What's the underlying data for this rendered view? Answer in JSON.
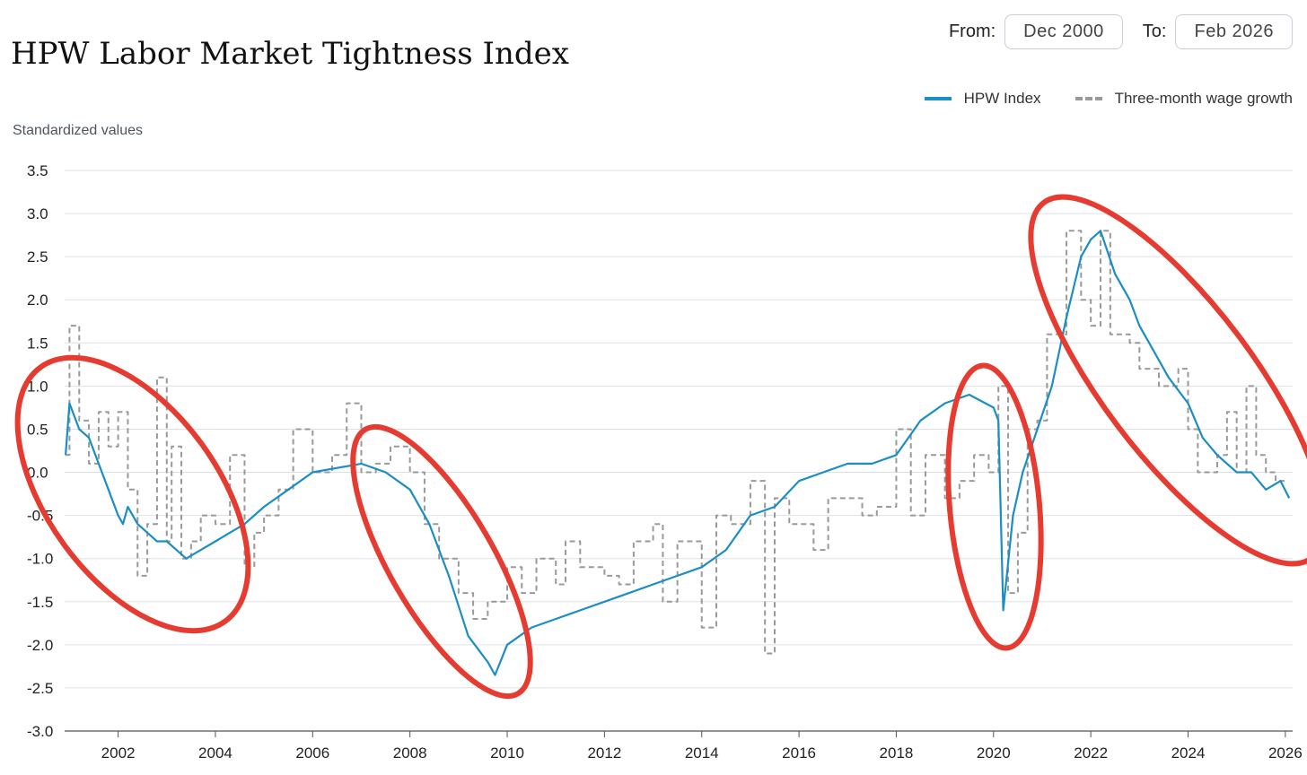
{
  "title": "HPW Labor Market Tightness Index",
  "controls": {
    "from_label": "From:",
    "from_value": "Dec 2000",
    "to_label": "To:",
    "to_value": "Feb 2026"
  },
  "legend": [
    {
      "label": "HPW Index",
      "color": "#1b8ec3",
      "style": "solid"
    },
    {
      "label": "Three-month wage growth",
      "color": "#9a9a9a",
      "style": "dashed"
    }
  ],
  "annotation_color": "#e53b30",
  "chart_data": {
    "type": "line",
    "title": "HPW Labor Market Tightness Index",
    "ylabel": "Standardized values",
    "xlabel": "",
    "ylim": [
      -3.0,
      3.5
    ],
    "xlim": [
      2000.9,
      2026.15
    ],
    "yticks": [
      "3.5",
      "3.0",
      "2.5",
      "2.0",
      "1.5",
      "1.0",
      "0.5",
      "0.0",
      "-0.5",
      "-1.0",
      "-1.5",
      "-2.0",
      "-2.5",
      "-3.0"
    ],
    "ytick_values": [
      3.5,
      3.0,
      2.5,
      2.0,
      1.5,
      1.0,
      0.5,
      0.0,
      -0.5,
      -1.0,
      -1.5,
      -2.0,
      -2.5,
      -3.0
    ],
    "xticks": [
      "2002",
      "2004",
      "2006",
      "2008",
      "2010",
      "2012",
      "2014",
      "2016",
      "2018",
      "2020",
      "2022",
      "2024",
      "2026"
    ],
    "xtick_values": [
      2002,
      2004,
      2006,
      2008,
      2010,
      2012,
      2014,
      2016,
      2018,
      2020,
      2022,
      2024,
      2026
    ],
    "grid": true,
    "legend_position": "top-right",
    "series": [
      {
        "name": "HPW Index",
        "color": "#1b8ec3",
        "x": [
          2000.92,
          2001.0,
          2001.2,
          2001.4,
          2001.6,
          2001.8,
          2002.0,
          2002.1,
          2002.2,
          2002.4,
          2002.6,
          2002.8,
          2003.0,
          2003.2,
          2003.4,
          2003.7,
          2004.0,
          2004.3,
          2004.6,
          2005.0,
          2005.5,
          2006.0,
          2006.5,
          2007.0,
          2007.5,
          2008.0,
          2008.4,
          2008.8,
          2009.2,
          2009.6,
          2009.75,
          2010.0,
          2010.5,
          2011.0,
          2011.5,
          2012.0,
          2012.5,
          2013.0,
          2013.5,
          2014.0,
          2014.5,
          2015.0,
          2015.5,
          2016.0,
          2016.5,
          2017.0,
          2017.5,
          2018.0,
          2018.5,
          2019.0,
          2019.5,
          2020.0,
          2020.1,
          2020.2,
          2020.4,
          2020.6,
          2020.9,
          2021.2,
          2021.5,
          2021.8,
          2022.0,
          2022.2,
          2022.5,
          2022.8,
          2023.0,
          2023.3,
          2023.6,
          2024.0,
          2024.3,
          2024.6,
          2025.0,
          2025.3,
          2025.6,
          2025.9,
          2026.08
        ],
        "y": [
          0.2,
          0.8,
          0.5,
          0.4,
          0.1,
          -0.2,
          -0.5,
          -0.6,
          -0.4,
          -0.6,
          -0.7,
          -0.8,
          -0.8,
          -0.9,
          -1.0,
          -0.9,
          -0.8,
          -0.7,
          -0.6,
          -0.4,
          -0.2,
          0.0,
          0.05,
          0.1,
          0.0,
          -0.2,
          -0.6,
          -1.2,
          -1.9,
          -2.2,
          -2.35,
          -2.0,
          -1.8,
          -1.7,
          -1.6,
          -1.5,
          -1.4,
          -1.3,
          -1.2,
          -1.1,
          -0.9,
          -0.5,
          -0.4,
          -0.1,
          0.0,
          0.1,
          0.1,
          0.2,
          0.6,
          0.8,
          0.9,
          0.75,
          0.6,
          -1.6,
          -0.5,
          0.0,
          0.5,
          1.0,
          1.8,
          2.5,
          2.7,
          2.8,
          2.3,
          2.0,
          1.7,
          1.4,
          1.1,
          0.8,
          0.4,
          0.2,
          0.0,
          0.0,
          -0.2,
          -0.1,
          -0.3
        ]
      },
      {
        "name": "Three-month wage growth",
        "color": "#9a9a9a",
        "x": [
          2000.92,
          2001.0,
          2001.2,
          2001.4,
          2001.6,
          2001.8,
          2002.0,
          2002.2,
          2002.4,
          2002.6,
          2002.8,
          2003.0,
          2003.1,
          2003.3,
          2003.5,
          2003.7,
          2004.0,
          2004.3,
          2004.6,
          2004.8,
          2005.0,
          2005.3,
          2005.6,
          2006.0,
          2006.4,
          2006.7,
          2007.0,
          2007.3,
          2007.6,
          2008.0,
          2008.3,
          2008.6,
          2009.0,
          2009.3,
          2009.6,
          2010.0,
          2010.3,
          2010.6,
          2011.0,
          2011.2,
          2011.5,
          2012.0,
          2012.3,
          2012.6,
          2013.0,
          2013.2,
          2013.5,
          2014.0,
          2014.3,
          2014.6,
          2015.0,
          2015.3,
          2015.5,
          2015.8,
          2016.0,
          2016.3,
          2016.6,
          2017.0,
          2017.3,
          2017.6,
          2018.0,
          2018.3,
          2018.6,
          2019.0,
          2019.3,
          2019.6,
          2019.9,
          2020.1,
          2020.3,
          2020.5,
          2020.7,
          2020.9,
          2021.1,
          2021.3,
          2021.5,
          2021.8,
          2022.0,
          2022.2,
          2022.4,
          2022.6,
          2022.8,
          2023.0,
          2023.2,
          2023.4,
          2023.6,
          2023.8,
          2024.0,
          2024.2,
          2024.4,
          2024.6,
          2024.8,
          2025.0,
          2025.2,
          2025.4,
          2025.6,
          2025.8,
          2026.0
        ],
        "y": [
          0.2,
          1.7,
          0.6,
          0.1,
          0.7,
          0.3,
          0.7,
          -0.2,
          -1.2,
          -0.6,
          1.1,
          -0.8,
          0.3,
          -1.0,
          -0.8,
          -0.5,
          -0.6,
          0.2,
          -1.1,
          -0.7,
          -0.5,
          -0.2,
          0.5,
          0.0,
          0.2,
          0.8,
          0.0,
          0.1,
          0.3,
          0.0,
          -0.6,
          -1.0,
          -1.4,
          -1.7,
          -1.5,
          -1.1,
          -1.4,
          -1.0,
          -1.3,
          -0.8,
          -1.1,
          -1.2,
          -1.3,
          -0.8,
          -0.6,
          -1.5,
          -0.8,
          -1.8,
          -0.5,
          -0.6,
          -0.1,
          -2.1,
          -0.3,
          -0.6,
          -0.6,
          -0.9,
          -0.3,
          -0.3,
          -0.5,
          -0.4,
          0.5,
          -0.5,
          0.2,
          -0.3,
          -0.1,
          0.2,
          0.0,
          1.0,
          -1.4,
          -0.7,
          0.5,
          0.6,
          1.6,
          1.6,
          2.8,
          2.0,
          1.7,
          2.8,
          1.6,
          1.6,
          1.5,
          1.2,
          1.2,
          1.0,
          1.0,
          1.2,
          0.5,
          0.0,
          0.0,
          0.2,
          0.7,
          0.0,
          1.0,
          0.2,
          0.0,
          -0.1,
          -0.1
        ]
      }
    ]
  }
}
